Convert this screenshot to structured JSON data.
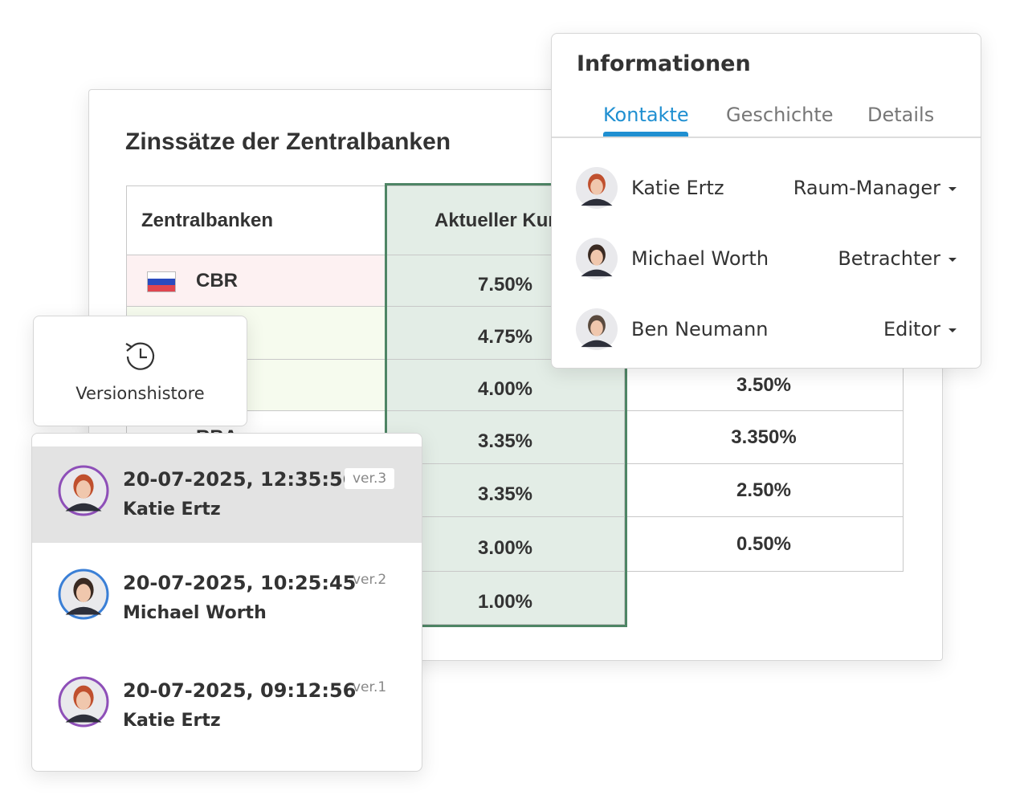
{
  "spreadsheet": {
    "title": "Zinssätze der Zentralbanken",
    "headers": [
      "Zentralbanken",
      "Aktueller Kurs"
    ],
    "rows": [
      {
        "bank": "CBR",
        "rate": "7.50%"
      },
      {
        "rate": "4.75%"
      },
      {
        "rate": "4.00%",
        "previous": "3.50%"
      },
      {
        "bank": "RBA",
        "rate": "3.35%",
        "previous": "3.350%"
      },
      {
        "rate": "3.35%",
        "previous": "2.50%"
      },
      {
        "rate": "3.00%",
        "previous": "0.50%"
      },
      {
        "rate": "1.00%"
      }
    ]
  },
  "info_panel": {
    "title": "Informationen",
    "tabs": [
      "Kontakte",
      "Geschichte",
      "Details"
    ],
    "contacts": [
      {
        "name": "Katie Ertz",
        "role": "Raum-Manager"
      },
      {
        "name": "Michael Worth",
        "role": "Betrachter"
      },
      {
        "name": "Ben Neumann",
        "role": "Editor"
      }
    ]
  },
  "version_button": {
    "label": "Versionshistore"
  },
  "versions": [
    {
      "timestamp": "20-07-2025, 12:35:56",
      "author": "Katie Ertz",
      "version": "ver.3"
    },
    {
      "timestamp": "20-07-2025, 10:25:45",
      "author": "Michael Worth",
      "version": "ver.2"
    },
    {
      "timestamp": "20-07-2025, 09:12:56",
      "author": "Katie Ertz",
      "version": "ver.1"
    }
  ]
}
